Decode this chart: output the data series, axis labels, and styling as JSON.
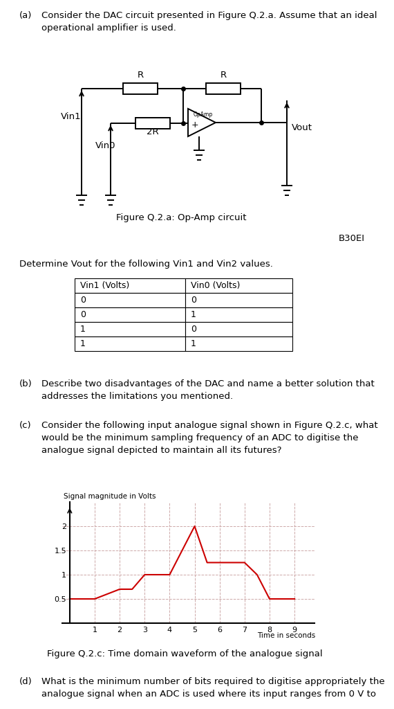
{
  "fig_caption_a": "Figure Q.2.a: Op-Amp circuit",
  "code": "B30EI",
  "table_intro": "Determine Vout for the following Vin1 and Vin2 values.",
  "table_headers": [
    "Vin1 (Volts)",
    "Vin0 (Volts)"
  ],
  "table_rows": [
    [
      "0",
      "0"
    ],
    [
      "0",
      "1"
    ],
    [
      "1",
      "0"
    ],
    [
      "1",
      "1"
    ]
  ],
  "fig_caption_c": "Figure Q.2.c: Time domain waveform of the analogue signal",
  "signal_x": [
    0,
    1,
    2,
    2.5,
    3,
    4,
    5,
    5.5,
    6,
    7,
    7.5,
    8,
    9
  ],
  "signal_y": [
    0.5,
    0.5,
    0.7,
    0.7,
    1.0,
    1.0,
    2.0,
    1.25,
    1.25,
    1.25,
    1.0,
    0.5,
    0.5
  ],
  "signal_color": "#cc0000",
  "yticks": [
    0.5,
    1.0,
    1.5,
    2.0
  ],
  "ytick_labels": [
    "0.5",
    "1",
    "1.5",
    "2"
  ],
  "xticks": [
    1,
    2,
    3,
    4,
    5,
    6,
    7,
    8,
    9
  ],
  "ylabel": "Signal magnitude in Volts",
  "xlabel": "Time in seconds",
  "bg_color": "#ffffff",
  "text_color": "#000000",
  "grid_color": "#c8a0a0"
}
